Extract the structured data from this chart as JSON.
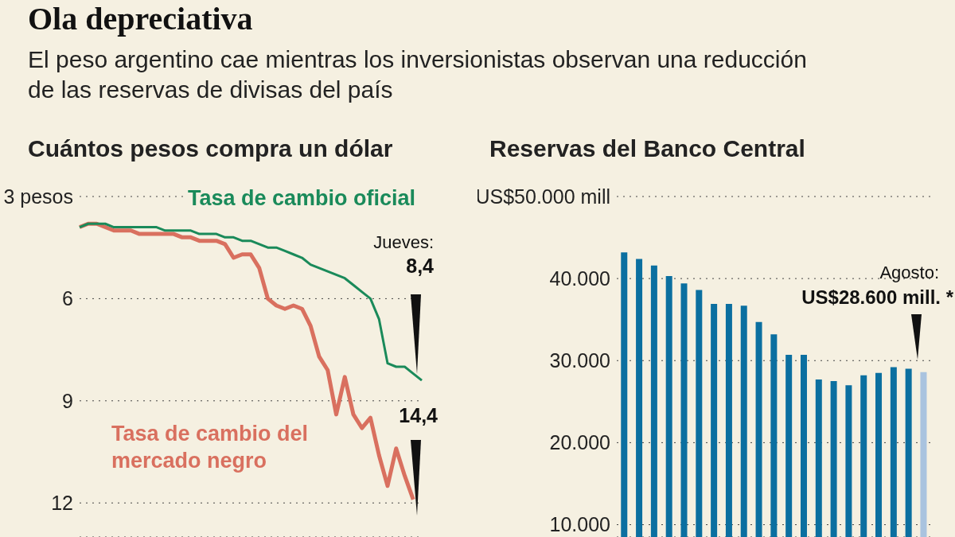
{
  "chart_data": [
    {
      "type": "line",
      "title": "Ola depreciativa",
      "subtitle": "El peso argentino cae mientras los inversionistas observan una reducción de las reservas de divisas del país",
      "categories": [
        null,
        null,
        null,
        null,
        null,
        null,
        null,
        null,
        null,
        null,
        null,
        null,
        null,
        null,
        null,
        null,
        null,
        null,
        null,
        null,
        null,
        null,
        null,
        null,
        null,
        null,
        null,
        null,
        null,
        null,
        null,
        null,
        null,
        null,
        null,
        null,
        null,
        null,
        null,
        null,
        null
      ],
      "series": [
        {
          "name": "Tasa de cambio oficial",
          "color": "#1a8a5a",
          "values": [
            3.9,
            3.8,
            3.8,
            3.8,
            3.9,
            3.9,
            3.9,
            3.9,
            3.9,
            3.9,
            4.0,
            4.0,
            4.0,
            4.0,
            4.1,
            4.1,
            4.1,
            4.2,
            4.2,
            4.3,
            4.3,
            4.4,
            4.5,
            4.5,
            4.6,
            4.7,
            4.8,
            5.0,
            5.1,
            5.2,
            5.3,
            5.4,
            5.6,
            5.8,
            6.0,
            6.6,
            7.9,
            8.0,
            8.0,
            8.2,
            8.4
          ]
        },
        {
          "name": "Tasa de cambio del mercado negro",
          "color": "#d9705f",
          "values": [
            3.9,
            3.8,
            3.8,
            3.9,
            4.0,
            4.0,
            4.0,
            4.1,
            4.1,
            4.1,
            4.1,
            4.1,
            4.2,
            4.2,
            4.3,
            4.3,
            4.3,
            4.4,
            4.8,
            4.7,
            4.7,
            5.1,
            6.0,
            6.2,
            6.3,
            6.2,
            6.3,
            6.8,
            7.7,
            8.1,
            9.4,
            8.3,
            9.4,
            9.8,
            9.5,
            10.6,
            11.5,
            10.4,
            11.2,
            11.9,
            null
          ]
        }
      ],
      "ylim": [
        13,
        3
      ],
      "yticks": [
        {
          "value": 3,
          "label": "3 pesos"
        },
        6,
        9,
        12
      ],
      "grid": "y",
      "marker": "none",
      "tick_labels": "y",
      "annotations": [
        "Cuántos pesos compra un dólar",
        "Jueves:",
        "8,4",
        "14,4"
      ]
    },
    {
      "type": "bar",
      "title": "Reservas del Banco Central",
      "categories": [
        null,
        null,
        null,
        null,
        null,
        null,
        null,
        null,
        null,
        null,
        null,
        null,
        null,
        null,
        null,
        null,
        null,
        null,
        null,
        null,
        null
      ],
      "values": [
        43200,
        42400,
        41600,
        40300,
        39400,
        38600,
        36900,
        36900,
        36700,
        34700,
        33200,
        30700,
        30700,
        27700,
        27500,
        27000,
        28200,
        28500,
        29200,
        29000,
        28600
      ],
      "colors": [
        "#0b6fa0",
        "#0b6fa0",
        "#0b6fa0",
        "#0b6fa0",
        "#0b6fa0",
        "#0b6fa0",
        "#0b6fa0",
        "#0b6fa0",
        "#0b6fa0",
        "#0b6fa0",
        "#0b6fa0",
        "#0b6fa0",
        "#0b6fa0",
        "#0b6fa0",
        "#0b6fa0",
        "#0b6fa0",
        "#0b6fa0",
        "#0b6fa0",
        "#0b6fa0",
        "#0b6fa0",
        "#a9c3df"
      ],
      "ylim": [
        8500,
        50000
      ],
      "yticks": [
        {
          "value": 10000,
          "label": "10.000"
        },
        {
          "value": 20000,
          "label": "20.000"
        },
        {
          "value": 30000,
          "label": "30.000"
        },
        {
          "value": 40000,
          "label": "40.000"
        },
        {
          "value": 50000,
          "label": "US$50.000 mill"
        }
      ],
      "grid": "y",
      "tick_labels": "y",
      "annotations": [
        "Agosto:",
        "US$28.600 mill. *"
      ]
    }
  ]
}
